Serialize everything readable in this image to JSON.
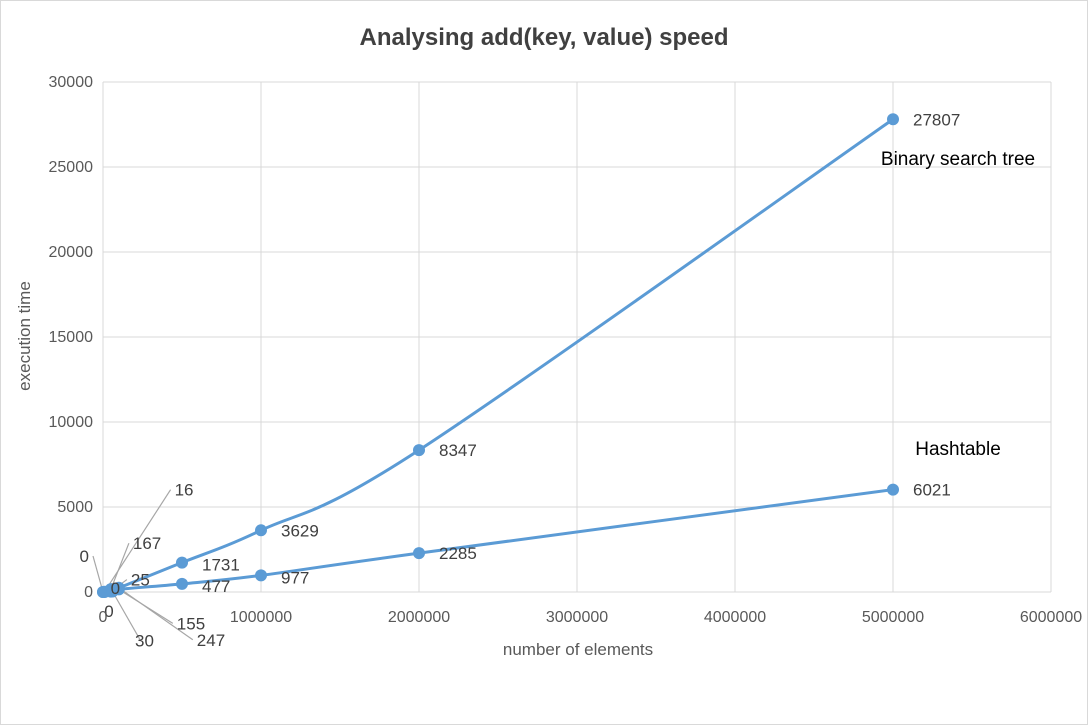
{
  "chart_data": {
    "type": "scatter",
    "title": "Analysing add(key, value) speed",
    "xlabel": "number of elements",
    "ylabel": "execution time",
    "xlim": [
      0,
      6000000
    ],
    "ylim": [
      0,
      30000
    ],
    "x_ticks": [
      "0",
      "1000000",
      "2000000",
      "3000000",
      "4000000",
      "5000000",
      "6000000"
    ],
    "y_ticks": [
      "0",
      "5000",
      "10000",
      "15000",
      "20000",
      "25000",
      "30000"
    ],
    "grid": true,
    "line_color": "#5b9bd5",
    "series": [
      {
        "name": "Binary search tree",
        "points": [
          {
            "x": 0,
            "y": 0,
            "label": "0"
          },
          {
            "x": 10000,
            "y": 16,
            "label": "16"
          },
          {
            "x": 50000,
            "y": 167,
            "label": "167"
          },
          {
            "x": 100000,
            "y": 247,
            "label": "247"
          },
          {
            "x": 500000,
            "y": 1731,
            "label": "1731"
          },
          {
            "x": 1000000,
            "y": 3629,
            "label": "3629"
          },
          {
            "x": 2000000,
            "y": 8347,
            "label": "8347"
          },
          {
            "x": 5000000,
            "y": 27807,
            "label": "27807"
          }
        ]
      },
      {
        "name": "Hashtable",
        "points": [
          {
            "x": 0,
            "y": 0,
            "label": "0"
          },
          {
            "x": 10000,
            "y": 0,
            "label": "0"
          },
          {
            "x": 50000,
            "y": 25,
            "label": "25"
          },
          {
            "x": 60000,
            "y": 30,
            "label": "30"
          },
          {
            "x": 100000,
            "y": 155,
            "label": "155"
          },
          {
            "x": 500000,
            "y": 477,
            "label": "477"
          },
          {
            "x": 1000000,
            "y": 977,
            "label": "977"
          },
          {
            "x": 2000000,
            "y": 2285,
            "label": "2285"
          },
          {
            "x": 5000000,
            "y": 6021,
            "label": "6021"
          }
        ]
      }
    ]
  }
}
